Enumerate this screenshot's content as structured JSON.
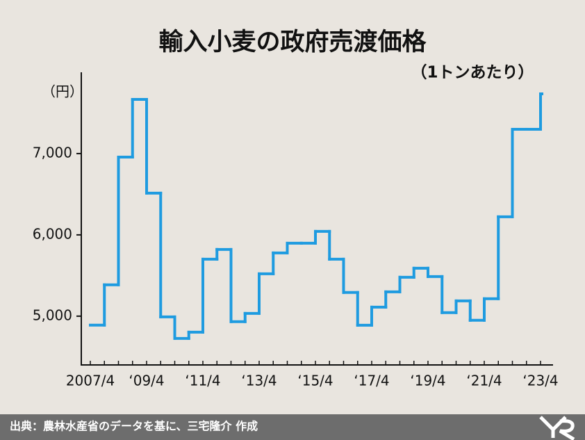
{
  "chart_data": {
    "type": "line",
    "step": true,
    "title": "輸入小麦の政府売渡価格",
    "subtitle": "（1トンあたり）",
    "y_label": "（円）",
    "categories": [
      "2007/4",
      null,
      null,
      null,
      "‘09/4",
      null,
      null,
      null,
      "‘11/4",
      null,
      null,
      null,
      "‘13/4",
      null,
      null,
      null,
      "‘15/4",
      null,
      null,
      null,
      "‘17/4",
      null,
      null,
      null,
      "‘19/4",
      null,
      null,
      null,
      "‘21/4",
      null,
      null,
      null,
      "‘23/4"
    ],
    "values": [
      4890,
      5385,
      6957,
      7667,
      6513,
      4991,
      4726,
      4803,
      5701,
      5821,
      4932,
      5034,
      5521,
      5778,
      5897,
      5897,
      6043,
      5701,
      5291,
      4889,
      5111,
      5299,
      5479,
      5590,
      5487,
      5043,
      5188,
      4949,
      5214,
      6222,
      7299,
      7299,
      7735
    ],
    "color": "#1e9be0",
    "ylim": [
      4400,
      8000
    ],
    "yticks": [
      {
        "value": 5000,
        "label": "5,000"
      },
      {
        "value": 6000,
        "label": "6,000"
      },
      {
        "value": 7000,
        "label": "7,000"
      }
    ],
    "grid": false
  },
  "source": "出典：農林水産省のデータを基に、三宅隆介 作成"
}
